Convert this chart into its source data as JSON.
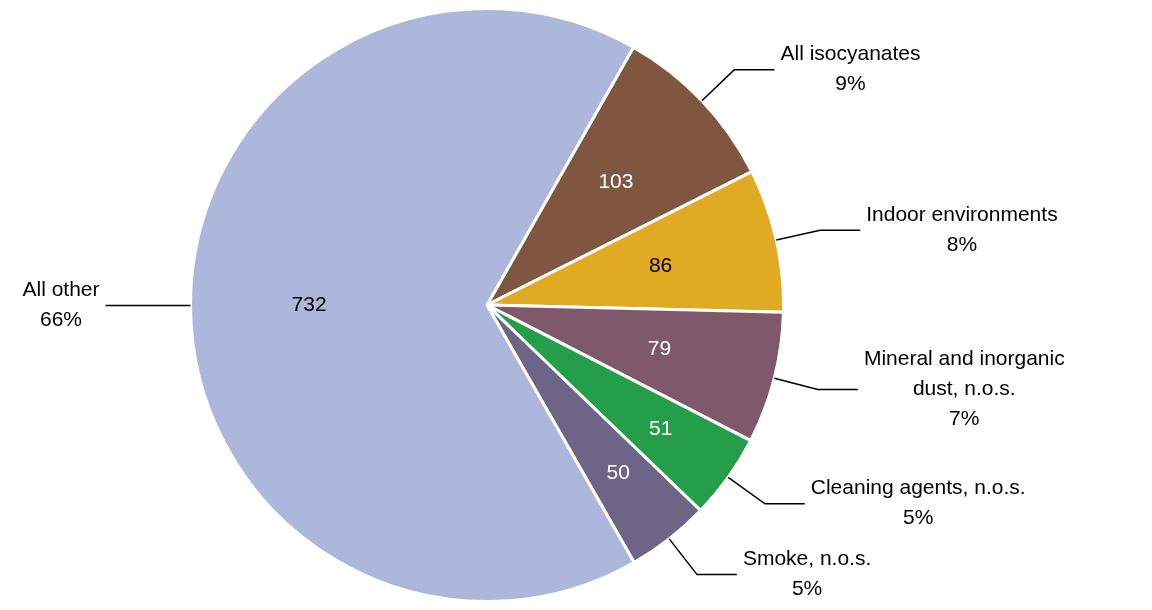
{
  "chart_data": {
    "type": "pie",
    "categories": [
      "All isocyanates",
      "Indoor environments",
      "Mineral and inorganic dust, n.o.s.",
      "Cleaning agents, n.o.s.",
      "Smoke, n.o.s.",
      "All other"
    ],
    "values": [
      103,
      86,
      79,
      51,
      50,
      732
    ],
    "colors": [
      "#7f5740",
      "#e0aa22",
      "#7f5869",
      "#249e48",
      "#6d6585",
      "#adb7db"
    ],
    "value_labels": [
      "103",
      "86",
      "79",
      "51",
      "50",
      "732"
    ],
    "annotations": [
      "9%",
      "8%",
      "7%",
      "5%",
      "5%",
      "66%"
    ],
    "legend": false
  }
}
